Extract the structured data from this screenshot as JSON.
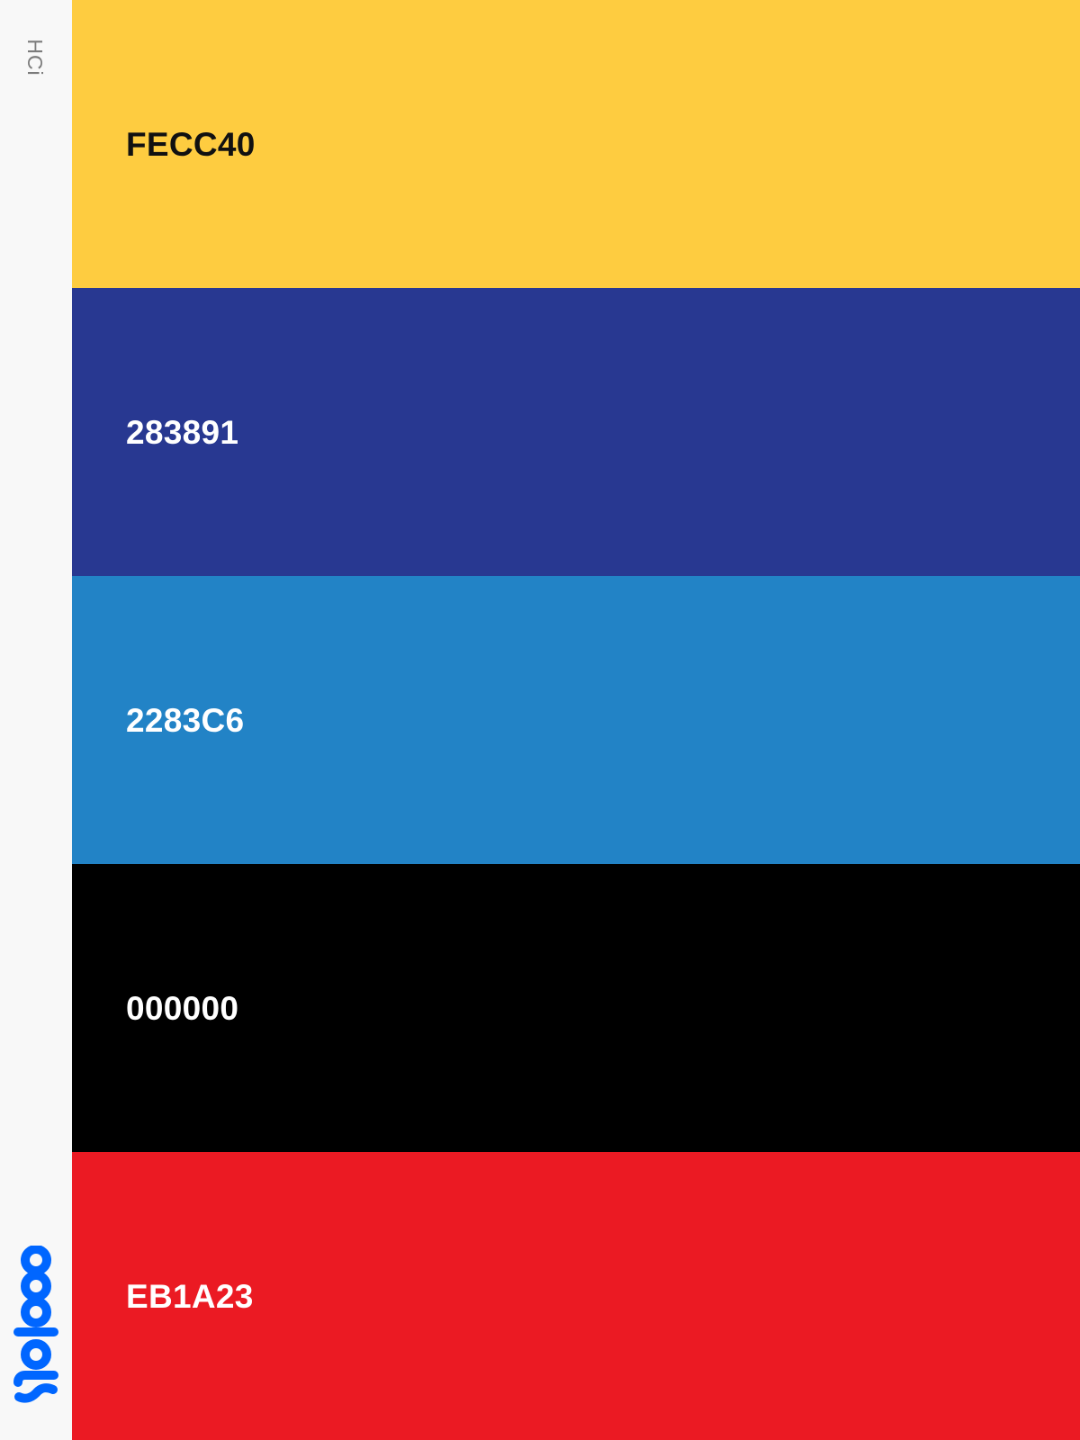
{
  "sidebar": {
    "top_text": "HCi",
    "brand_name": "coolors",
    "brand_color": "#0066ff",
    "top_text_color": "#7b7b7b"
  },
  "palette": {
    "swatches": [
      {
        "hex": "FECC40",
        "color": "#FECC40",
        "text_color": "#111111"
      },
      {
        "hex": "283891",
        "color": "#283891",
        "text_color": "#ffffff"
      },
      {
        "hex": "2283C6",
        "color": "#2283C6",
        "text_color": "#ffffff"
      },
      {
        "hex": "000000",
        "color": "#000000",
        "text_color": "#ffffff"
      },
      {
        "hex": "EB1A23",
        "color": "#EB1A23",
        "text_color": "#ffffff"
      }
    ]
  }
}
